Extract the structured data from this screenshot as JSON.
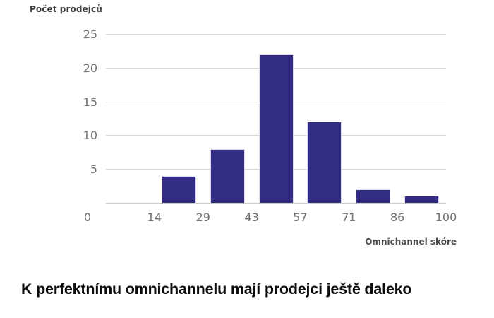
{
  "chart": {
    "y_axis_title": "Počet prodejců",
    "x_axis_title": "Omnichannel skóre",
    "colors": {
      "bar_fill": "#322c84",
      "bar_edge": "#dedbed",
      "gridline": "#d9d9d9",
      "tick_text": "#6e6e6e",
      "axis_title_text": "#3f3f3f",
      "title_text": "#0d0d0d",
      "background": "#ffffff"
    }
  },
  "chart_data": {
    "type": "bar",
    "subtype": "histogram",
    "title": "K perfektnímu omnichannelu mají prodejci ještě daleko",
    "xlabel": "Omnichannel skóre",
    "ylabel": "Počet prodejců",
    "bins": [
      "0–14",
      "14–29",
      "29–43",
      "43–57",
      "57–71",
      "71–86",
      "86–100"
    ],
    "values": [
      0,
      4,
      8,
      22,
      12,
      2,
      1
    ],
    "x_tick_labels": [
      "0",
      "14",
      "29",
      "43",
      "57",
      "71",
      "86",
      "100"
    ],
    "y_tick_labels": [
      "25",
      "20",
      "15",
      "10",
      "5"
    ],
    "ylim": [
      0,
      25
    ],
    "y_tick_step": 5,
    "grid": "horizontal",
    "legend": "none"
  }
}
